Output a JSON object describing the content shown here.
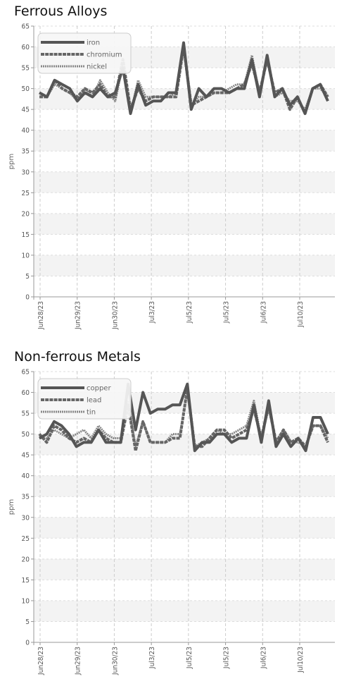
{
  "charts": [
    {
      "title": "Ferrous Alloys",
      "chart_data": {
        "type": "line",
        "title": "Ferrous Alloys",
        "ylabel": "ppm",
        "xlabel": "",
        "ylim": [
          0,
          65
        ],
        "yticks": [
          0,
          5,
          10,
          15,
          20,
          25,
          30,
          35,
          40,
          45,
          50,
          55,
          60,
          65
        ],
        "grid": true,
        "legend_position": "top-left",
        "x_tick_labels": [
          "Jun28/23",
          "Jun29/23",
          "Jun30/23",
          "Jul3/23",
          "Jul5/23",
          "Jul5/23",
          "Jul6/23",
          "Jul10/23"
        ],
        "series": [
          {
            "name": "iron",
            "color": "#555555",
            "style": "solid",
            "values": [
              49,
              48,
              52,
              51,
              50,
              47,
              49,
              48,
              50,
              48,
              49,
              55,
              44,
              51,
              46,
              47,
              47,
              49,
              49,
              61,
              45,
              50,
              48,
              50,
              50,
              49,
              50,
              50,
              57,
              48,
              58,
              48,
              50,
              46,
              48,
              44,
              50,
              51,
              47
            ]
          },
          {
            "name": "chromium",
            "color": "#666666",
            "style": "dashed",
            "values": [
              48,
              48,
              52,
              50,
              49,
              48,
              50,
              49,
              51,
              48,
              48,
              57,
              45,
              50,
              47,
              48,
              48,
              48,
              48,
              60,
              46,
              47,
              48,
              49,
              49,
              49,
              50,
              51,
              56,
              49,
              57,
              49,
              50,
              45,
              48,
              44,
              50,
              51,
              48
            ]
          },
          {
            "name": "nickel",
            "color": "#888888",
            "style": "dotted",
            "values": [
              49,
              48,
              51,
              50,
              49,
              47,
              50,
              48,
              52,
              49,
              47,
              56,
              44,
              52,
              48,
              48,
              48,
              48,
              49,
              60,
              46,
              48,
              48,
              49,
              49,
              50,
              51,
              51,
              58,
              49,
              57,
              48,
              49,
              47,
              47,
              45,
              50,
              50,
              48
            ]
          }
        ]
      }
    },
    {
      "title": "Non-ferrous Metals",
      "chart_data": {
        "type": "line",
        "title": "Non-ferrous Metals",
        "ylabel": "ppm",
        "xlabel": "",
        "ylim": [
          0,
          65
        ],
        "yticks": [
          0,
          5,
          10,
          15,
          20,
          25,
          30,
          35,
          40,
          45,
          50,
          55,
          60,
          65
        ],
        "grid": true,
        "legend_position": "top-left",
        "x_tick_labels": [
          "Jun28/23",
          "Jun29/23",
          "Jun30/23",
          "Jul3/23",
          "Jul5/23",
          "Jul5/23",
          "Jul6/23",
          "Jul10/23"
        ],
        "series": [
          {
            "name": "copper",
            "color": "#555555",
            "style": "solid",
            "values": [
              49,
              50,
              53,
              52,
              50,
              47,
              48,
              48,
              51,
              48,
              48,
              48,
              62,
              51,
              60,
              55,
              56,
              56,
              57,
              57,
              62,
              46,
              48,
              48,
              50,
              50,
              48,
              49,
              49,
              57,
              48,
              58,
              47,
              50,
              47,
              49,
              46,
              54,
              54,
              50
            ]
          },
          {
            "name": "lead",
            "color": "#666666",
            "style": "dashed",
            "values": [
              50,
              48,
              52,
              51,
              49,
              48,
              49,
              48,
              51,
              49,
              48,
              48,
              57,
              46,
              53,
              48,
              48,
              48,
              49,
              49,
              61,
              47,
              47,
              49,
              51,
              51,
              49,
              50,
              51,
              56,
              49,
              57,
              48,
              51,
              48,
              49,
              47,
              52,
              52,
              48
            ]
          },
          {
            "name": "tin",
            "color": "#888888",
            "style": "dotted",
            "values": [
              49,
              49,
              51,
              50,
              49,
              50,
              51,
              49,
              52,
              50,
              49,
              49,
              58,
              47,
              53,
              48,
              48,
              48,
              50,
              50,
              60,
              47,
              48,
              49,
              51,
              50,
              50,
              51,
              52,
              58,
              49,
              56,
              48,
              51,
              48,
              48,
              47,
              52,
              52,
              49
            ]
          }
        ]
      }
    }
  ]
}
